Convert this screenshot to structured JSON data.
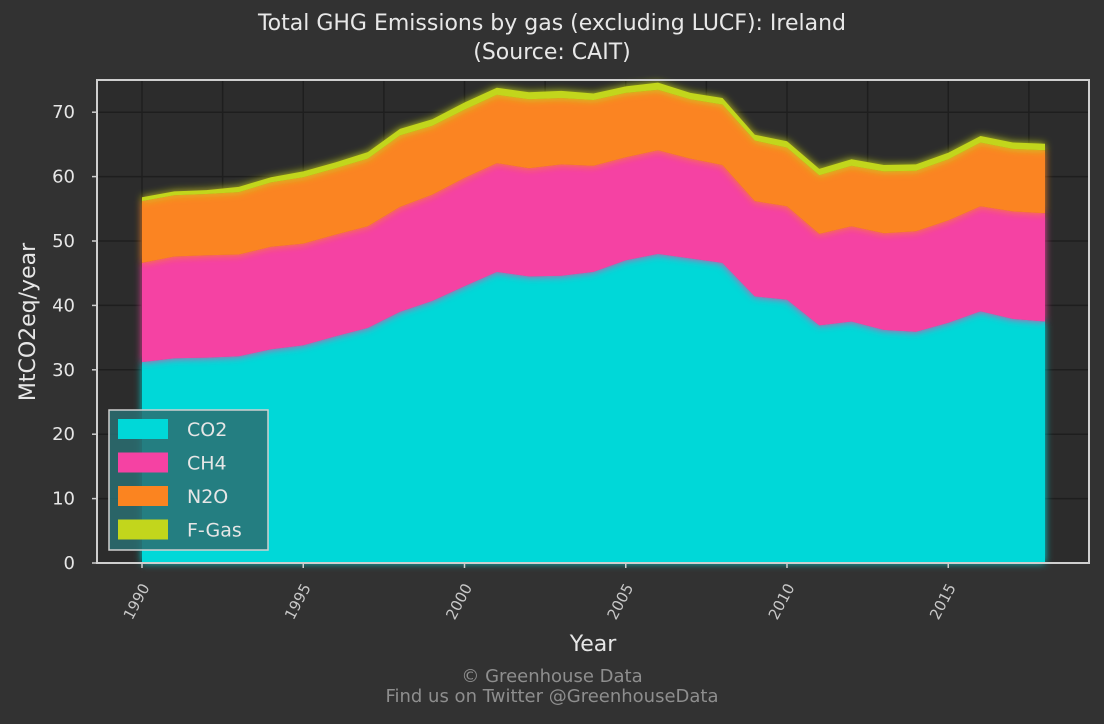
{
  "chart_data": {
    "type": "area",
    "title": "Total GHG Emissions by gas (excluding LUCF): Ireland",
    "subtitle": "(Source: CAIT)",
    "xlabel": "Year",
    "ylabel": "MtCO2eq/year",
    "xlim": [
      1990,
      2018
    ],
    "ylim": [
      0,
      75
    ],
    "x_ticks": [
      "1990",
      "1995",
      "2000",
      "2005",
      "2010",
      "2015"
    ],
    "y_ticks": [
      "0",
      "10",
      "20",
      "30",
      "40",
      "50",
      "60",
      "70"
    ],
    "stacked": true,
    "grid": true,
    "legend_position": "bottom-left",
    "x": [
      1990,
      1991,
      1992,
      1993,
      1994,
      1995,
      1996,
      1997,
      1998,
      1999,
      2000,
      2001,
      2002,
      2003,
      2004,
      2005,
      2006,
      2007,
      2008,
      2009,
      2010,
      2011,
      2012,
      2013,
      2014,
      2015,
      2016,
      2017,
      2018
    ],
    "series": [
      {
        "name": "CO2",
        "color": "#00d8d8",
        "values": [
          31.2,
          31.8,
          31.9,
          32.1,
          33.2,
          33.8,
          35.2,
          36.5,
          39.0,
          40.7,
          43.0,
          45.2,
          44.5,
          44.6,
          45.2,
          47.0,
          48.0,
          47.3,
          46.6,
          41.4,
          40.9,
          36.9,
          37.5,
          36.2,
          35.9,
          37.3,
          39.1,
          37.9,
          37.5
        ]
      },
      {
        "name": "CH4",
        "color": "#f542a3",
        "values": [
          15.4,
          15.8,
          15.9,
          15.8,
          15.9,
          15.8,
          15.8,
          15.8,
          16.3,
          16.5,
          16.8,
          16.9,
          16.8,
          17.3,
          16.5,
          16.0,
          16.1,
          15.5,
          15.2,
          14.8,
          14.5,
          14.2,
          14.8,
          15.0,
          15.6,
          15.9,
          16.3,
          16.7,
          16.8
        ]
      },
      {
        "name": "N2O",
        "color": "#fb8420",
        "values": [
          9.6,
          9.5,
          9.5,
          9.7,
          10.0,
          10.3,
          10.3,
          10.5,
          11.1,
          10.7,
          10.6,
          10.6,
          10.7,
          10.3,
          10.2,
          10.0,
          9.4,
          9.2,
          9.4,
          9.4,
          9.1,
          9.1,
          9.4,
          9.6,
          9.4,
          9.5,
          9.9,
          9.7,
          9.8
        ]
      },
      {
        "name": "F-Gas",
        "color": "#c2d61c",
        "values": [
          0.6,
          0.6,
          0.6,
          0.8,
          0.8,
          0.9,
          0.9,
          1.0,
          1.0,
          1.0,
          1.1,
          1.1,
          1.1,
          1.1,
          1.0,
          1.0,
          1.1,
          1.0,
          1.0,
          0.9,
          1.0,
          1.0,
          1.0,
          1.0,
          1.0,
          1.0,
          1.0,
          1.0,
          1.0
        ]
      }
    ]
  },
  "footer": {
    "line1": "© Greenhouse Data",
    "line2": "Find us on Twitter @GreenhouseData"
  }
}
